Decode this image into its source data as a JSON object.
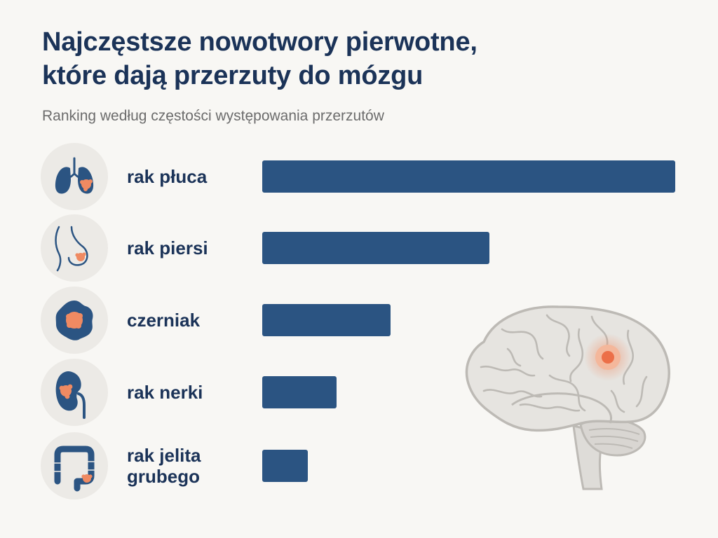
{
  "header": {
    "title_line1": "Najczęstsze nowotwory pierwotne,",
    "title_line2": "które dają przerzuty do mózgu",
    "subtitle": "Ranking według częstości występowania przerzutów"
  },
  "colors": {
    "bar": "#2b5482",
    "title": "#1b3358",
    "tumor": "#ef8a62",
    "icon_bg": "#eceae6"
  },
  "chart_data": {
    "type": "bar",
    "orientation": "horizontal",
    "categories": [
      "rak płuca",
      "rak piersi",
      "czerniak",
      "rak nerki",
      "rak jelita grubego"
    ],
    "values": [
      100,
      55,
      31,
      18,
      11
    ],
    "value_scale": "relative, longest bar = 100",
    "xlabel": "",
    "ylabel": "",
    "xlim": [
      0,
      100
    ],
    "grid": false,
    "legend": "none",
    "icons": [
      "lungs-icon",
      "breast-icon",
      "melanoma-icon",
      "kidney-icon",
      "colon-icon"
    ]
  },
  "rows": [
    {
      "label_line1": "rak płuca",
      "label_line2": ""
    },
    {
      "label_line1": "rak piersi",
      "label_line2": ""
    },
    {
      "label_line1": "czerniak",
      "label_line2": ""
    },
    {
      "label_line1": "rak nerki",
      "label_line2": ""
    },
    {
      "label_line1": "rak jelita",
      "label_line2": "grubego"
    }
  ],
  "illustration": {
    "icon": "brain-icon"
  }
}
